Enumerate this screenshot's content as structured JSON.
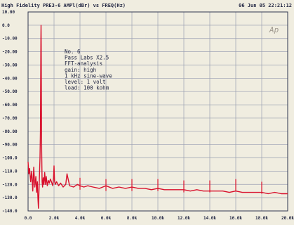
{
  "header": {
    "left": "High Fidelity PRE3-6  AMPl(dBr) vs FREQ(Hz)",
    "right": "06 Jun 05 22:21:12"
  },
  "logo": "Ap",
  "annotation": [
    "No.   6",
    "Pass  Labs  X2.5",
    "FFT-analysis",
    "gain:  high",
    "1  kHz  sine-wave",
    "level:   1  volt",
    "load:  100  kohm"
  ],
  "colors": {
    "background": "#f0ede0",
    "grid": "#9aa0b2",
    "trace": "#d8102c",
    "text": "#1e2340"
  },
  "chart_data": {
    "type": "line",
    "title": "High Fidelity PRE3-6  AMPl(dBr) vs FREQ(Hz)",
    "xlabel": "",
    "ylabel": "",
    "xlim": [
      0,
      20000
    ],
    "ylim": [
      -140,
      10
    ],
    "x_ticks": [
      0,
      2000,
      4000,
      6000,
      8000,
      10000,
      12000,
      14000,
      16000,
      18000,
      20000
    ],
    "x_tick_labels": [
      "0.0",
      "2.0k",
      "4.0k",
      "6.0k",
      "8.0k",
      "10.0k",
      "12.0k",
      "14.0k",
      "16.0k",
      "18.0k",
      "20.0k"
    ],
    "y_ticks": [
      10,
      0,
      -10,
      -20,
      -30,
      -40,
      -50,
      -60,
      -70,
      -80,
      -90,
      -100,
      -110,
      -120,
      -130,
      -140
    ],
    "y_tick_labels": [
      "10.00",
      "0.0",
      "-10.00",
      "-20.00",
      "-30.00",
      "-40.00",
      "-50.00",
      "-60.00",
      "-70.00",
      "-80.00",
      "-90.00",
      "-100.0",
      "-110.0",
      "-120.0",
      "-130.0",
      "-140.0"
    ],
    "grid": true,
    "series": [
      {
        "color": "#d8102c",
        "x": [
          0,
          60,
          120,
          200,
          280,
          360,
          440,
          520,
          600,
          660,
          720,
          760,
          800,
          840,
          880,
          920,
          950,
          975,
          990,
          1000,
          1010,
          1025,
          1050,
          1080,
          1120,
          1170,
          1220,
          1280,
          1340,
          1400,
          1480,
          1560,
          1640,
          1720,
          1800,
          1900,
          1960,
          2000,
          2040,
          2100,
          2200,
          2350,
          2500,
          2700,
          2900,
          3000,
          3200,
          3500,
          3800,
          4000,
          4300,
          4600,
          5000,
          5500,
          6000,
          6500,
          7000,
          7500,
          8000,
          8500,
          9000,
          9500,
          10000,
          10500,
          11000,
          11500,
          12000,
          12500,
          13000,
          13500,
          14000,
          14500,
          15000,
          15500,
          16000,
          16500,
          17000,
          17500,
          18000,
          18500,
          19000,
          19500,
          20000
        ],
        "y": [
          -103,
          -112,
          -108,
          -118,
          -110,
          -125,
          -107,
          -122,
          -114,
          -126,
          -118,
          -131,
          -138,
          -126,
          -112,
          -100,
          -80,
          -40,
          -10,
          0,
          -15,
          -55,
          -95,
          -118,
          -122,
          -115,
          -120,
          -111,
          -120,
          -114,
          -121,
          -117,
          -119,
          -116,
          -118,
          -121,
          -115,
          -106,
          -117,
          -120,
          -118,
          -121,
          -119,
          -122,
          -120,
          -112,
          -121,
          -122,
          -120,
          -121,
          -122,
          -121,
          -122,
          -123,
          -121,
          -123,
          -122,
          -123,
          -122,
          -123,
          -123,
          -124,
          -123,
          -124,
          -124,
          -124,
          -124,
          -125,
          -124,
          -125,
          -125,
          -125,
          -125,
          -126,
          -125,
          -126,
          -126,
          -126,
          -126,
          -127,
          -126,
          -127,
          -127
        ]
      }
    ],
    "spurs": [
      {
        "x": 4000,
        "y": -121
      },
      {
        "x": 6000,
        "y": -122
      },
      {
        "x": 8000,
        "y": -122
      },
      {
        "x": 10000,
        "y": -122
      },
      {
        "x": 12000,
        "y": -123
      },
      {
        "x": 14000,
        "y": -123
      },
      {
        "x": 16000,
        "y": -122
      },
      {
        "x": 18000,
        "y": -124
      }
    ]
  }
}
